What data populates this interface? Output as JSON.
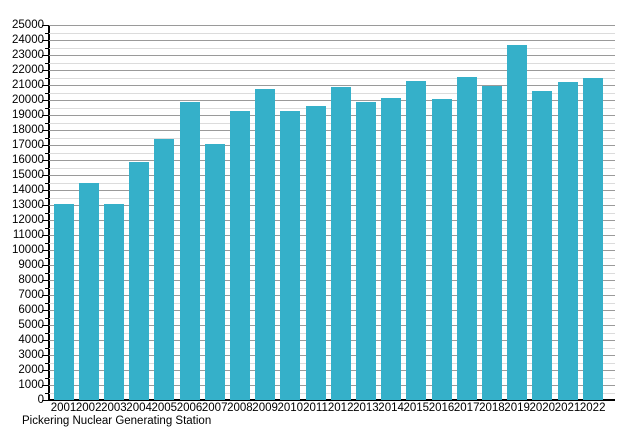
{
  "chart_data": {
    "type": "bar",
    "caption": "Pickering Nuclear Generating Station",
    "categories": [
      "2001",
      "2002",
      "2003",
      "2004",
      "2005",
      "2006",
      "2007",
      "2008",
      "2009",
      "2010",
      "2011",
      "2012",
      "2013",
      "2014",
      "2015",
      "2016",
      "2017",
      "2018",
      "2019",
      "2020",
      "2021",
      "2022"
    ],
    "values": [
      13100,
      14500,
      13100,
      15880,
      17400,
      19900,
      17100,
      19250,
      20750,
      19250,
      19600,
      20850,
      19850,
      20150,
      21300,
      20050,
      21550,
      20950,
      23700,
      20600,
      21200,
      21450
    ],
    "title": "",
    "xlabel": "",
    "ylabel": "",
    "ylim": [
      0,
      25000
    ],
    "y_major_step": 1000,
    "y_minor_step": 500,
    "grid": "on",
    "legend": "none",
    "y_tick_labels": [
      "0",
      "1000",
      "2000",
      "3000",
      "4000",
      "5000",
      "6000",
      "7000",
      "8000",
      "9000",
      "10000",
      "11000",
      "12000",
      "13000",
      "14000",
      "15000",
      "16000",
      "17000",
      "18000",
      "19000",
      "20000",
      "21000",
      "22000",
      "23000",
      "24000",
      "25000"
    ],
    "colors": {
      "bar": "#35b0c9",
      "major_grid": "#9a9a9a",
      "minor_grid": "#dcdcdc",
      "axis": "#000000",
      "text": "#000000"
    }
  }
}
